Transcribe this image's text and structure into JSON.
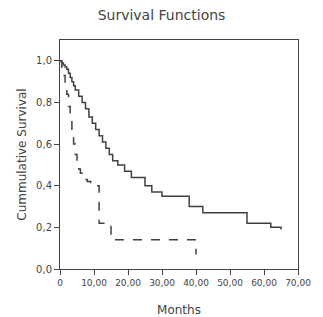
{
  "chart_data": {
    "type": "step",
    "title": "Survival Functions",
    "xlabel": "Months",
    "ylabel": "Cummulative Survival",
    "xlim": [
      0,
      70
    ],
    "ylim": [
      0.0,
      1.1
    ],
    "xticks": [
      0,
      {
        "value": 10,
        "label": "10,00"
      },
      {
        "value": 20,
        "label": "20,00"
      },
      {
        "value": 30,
        "label": "30,00"
      },
      {
        "value": 40,
        "label": "40,00"
      },
      {
        "value": 50,
        "label": "50,00"
      },
      {
        "value": 60,
        "label": "60,00"
      },
      {
        "value": 70,
        "label": "70,00"
      }
    ],
    "yticks": [
      {
        "value": 0.0,
        "label": "0,0"
      },
      {
        "value": 0.2,
        "label": "0,2"
      },
      {
        "value": 0.4,
        "label": "0,4"
      },
      {
        "value": 0.6,
        "label": "0,6"
      },
      {
        "value": 0.8,
        "label": "0,8"
      },
      {
        "value": 1.0,
        "label": "1,0"
      }
    ],
    "grid": false,
    "series": [
      {
        "color": "#404040",
        "line_style": "solid",
        "x": [
          0,
          0.5,
          1.0,
          1.5,
          2.0,
          2.5,
          3.0,
          3.5,
          4.0,
          4.5,
          5.5,
          6.5,
          7.5,
          8.5,
          9.5,
          10.5,
          11.5,
          12.5,
          13.5,
          14.5,
          15.5,
          17,
          19,
          21,
          25,
          27,
          30,
          38,
          42,
          55,
          62,
          65
        ],
        "values": [
          1.0,
          0.99,
          0.98,
          0.97,
          0.96,
          0.94,
          0.92,
          0.9,
          0.88,
          0.86,
          0.83,
          0.8,
          0.77,
          0.73,
          0.7,
          0.67,
          0.64,
          0.61,
          0.58,
          0.55,
          0.52,
          0.5,
          0.47,
          0.44,
          0.4,
          0.37,
          0.35,
          0.3,
          0.27,
          0.22,
          0.2,
          0.19
        ]
      },
      {
        "color": "#404040",
        "line_style": "dashed",
        "x": [
          0,
          0.5,
          1.0,
          1.5,
          2.0,
          2.5,
          3.0,
          3.5,
          4.0,
          4.5,
          5.0,
          5.5,
          6.0,
          6.5,
          7.0,
          8.0,
          9.0,
          10.0,
          11.5,
          13.0,
          15.0,
          20.0,
          38.0,
          40.0
        ],
        "values": [
          1.0,
          0.97,
          0.93,
          0.89,
          0.84,
          0.78,
          0.72,
          0.66,
          0.6,
          0.55,
          0.51,
          0.48,
          0.46,
          0.44,
          0.43,
          0.42,
          0.41,
          0.4,
          0.22,
          0.22,
          0.14,
          0.14,
          0.14,
          0.07
        ]
      }
    ]
  }
}
